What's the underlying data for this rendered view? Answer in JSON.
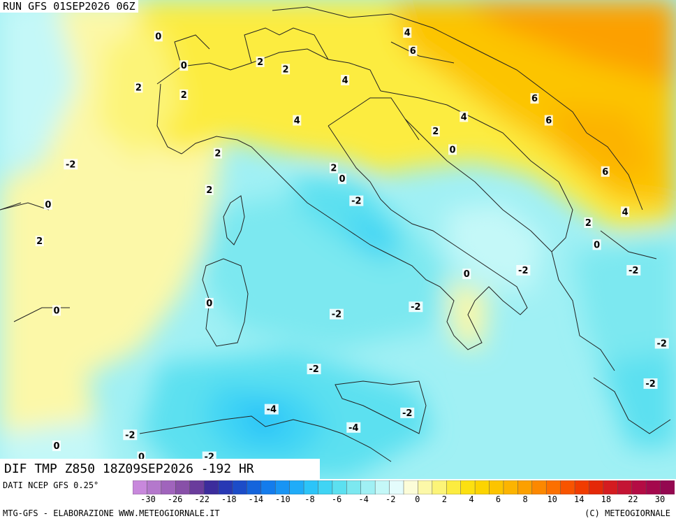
{
  "header": {
    "run_label": "RUN GFS 01SEP2026 06Z"
  },
  "valid": {
    "label": "DIF TMP Z850 18Z09SEP2026 -192 HR"
  },
  "footer": {
    "data_source": "DATI NCEP GFS 0.25°",
    "left": "MTG-GFS - ELABORAZIONE WWW.METEOGIORNALE.IT",
    "right": "(C) METEOGIORNALE"
  },
  "legend": {
    "ticks": [
      "-30",
      "-26",
      "-22",
      "-18",
      "-14",
      "-10",
      "-8",
      "-6",
      "-4",
      "-2",
      "0",
      "2",
      "4",
      "6",
      "8",
      "10",
      "14",
      "18",
      "22",
      "30"
    ],
    "colors": [
      "#c888dc",
      "#b478cc",
      "#a064bc",
      "#8850a8",
      "#6a3c9c",
      "#3c2c9c",
      "#2838b4",
      "#1c4cc8",
      "#1464dc",
      "#147cec",
      "#1894f4",
      "#20acf8",
      "#2cc4f8",
      "#40d4f4",
      "#5ce0f0",
      "#7ce8f0",
      "#a0f0f4",
      "#c4f8f8",
      "#e4fcfc",
      "#fcfcd8",
      "#fcf8a8",
      "#fcf478",
      "#fcec40",
      "#fce010",
      "#fcd400",
      "#fcc400",
      "#fcb400",
      "#fca000",
      "#fc8800",
      "#fc7000",
      "#f85400",
      "#f03c00",
      "#e42808",
      "#d41c20",
      "#c41434",
      "#b40c44",
      "#a4084c",
      "#940850"
    ]
  },
  "map_labels": [
    {
      "text": "0",
      "lon": 5.0,
      "lat": 47.7
    },
    {
      "text": "0",
      "lon": 5.9,
      "lat": 46.9
    },
    {
      "text": "2",
      "lon": 4.3,
      "lat": 46.3
    },
    {
      "text": "2",
      "lon": 5.9,
      "lat": 46.1
    },
    {
      "text": "2",
      "lon": 8.6,
      "lat": 47.0
    },
    {
      "text": "2",
      "lon": 9.5,
      "lat": 46.8
    },
    {
      "text": "4",
      "lon": 11.6,
      "lat": 46.5
    },
    {
      "text": "4",
      "lon": 13.8,
      "lat": 47.8
    },
    {
      "text": "6",
      "lon": 14.0,
      "lat": 47.3
    },
    {
      "text": "4",
      "lon": 9.9,
      "lat": 45.4
    },
    {
      "text": "6",
      "lon": 18.3,
      "lat": 46.0
    },
    {
      "text": "6",
      "lon": 18.8,
      "lat": 45.4
    },
    {
      "text": "4",
      "lon": 15.8,
      "lat": 45.5
    },
    {
      "text": "2",
      "lon": 14.8,
      "lat": 45.1
    },
    {
      "text": "0",
      "lon": 15.4,
      "lat": 44.6
    },
    {
      "text": "6",
      "lon": 20.8,
      "lat": 44.0
    },
    {
      "text": "4",
      "lon": 21.5,
      "lat": 42.9
    },
    {
      "text": "2",
      "lon": 7.1,
      "lat": 44.5
    },
    {
      "text": "2",
      "lon": 11.2,
      "lat": 44.1
    },
    {
      "text": "0",
      "lon": 11.5,
      "lat": 43.8
    },
    {
      "text": "-2",
      "lon": 1.9,
      "lat": 44.2
    },
    {
      "text": "2",
      "lon": 6.8,
      "lat": 43.5
    },
    {
      "text": "0",
      "lon": 1.1,
      "lat": 43.1
    },
    {
      "text": "-2",
      "lon": 12.0,
      "lat": 43.2
    },
    {
      "text": "2",
      "lon": 0.8,
      "lat": 42.1
    },
    {
      "text": "2",
      "lon": 20.2,
      "lat": 42.6
    },
    {
      "text": "0",
      "lon": 20.5,
      "lat": 42.0
    },
    {
      "text": "-2",
      "lon": 17.9,
      "lat": 41.3
    },
    {
      "text": "0",
      "lon": 15.9,
      "lat": 41.2
    },
    {
      "text": "-2",
      "lon": 21.8,
      "lat": 41.3
    },
    {
      "text": "0",
      "lon": 1.4,
      "lat": 40.2
    },
    {
      "text": "0",
      "lon": 6.8,
      "lat": 40.4
    },
    {
      "text": "-2",
      "lon": 11.3,
      "lat": 40.1
    },
    {
      "text": "-2",
      "lon": 14.1,
      "lat": 40.3
    },
    {
      "text": "-2",
      "lon": 22.8,
      "lat": 39.3
    },
    {
      "text": "-2",
      "lon": 10.5,
      "lat": 38.6
    },
    {
      "text": "-2",
      "lon": 22.4,
      "lat": 38.2
    },
    {
      "text": "-4",
      "lon": 9.0,
      "lat": 37.5
    },
    {
      "text": "-2",
      "lon": 13.8,
      "lat": 37.4
    },
    {
      "text": "-4",
      "lon": 11.9,
      "lat": 37.0
    },
    {
      "text": "-2",
      "lon": 4.0,
      "lat": 36.8
    },
    {
      "text": "0",
      "lon": 1.4,
      "lat": 36.5
    },
    {
      "text": "0",
      "lon": 4.4,
      "lat": 36.2
    },
    {
      "text": "-2",
      "lon": 6.8,
      "lat": 36.2
    }
  ]
}
